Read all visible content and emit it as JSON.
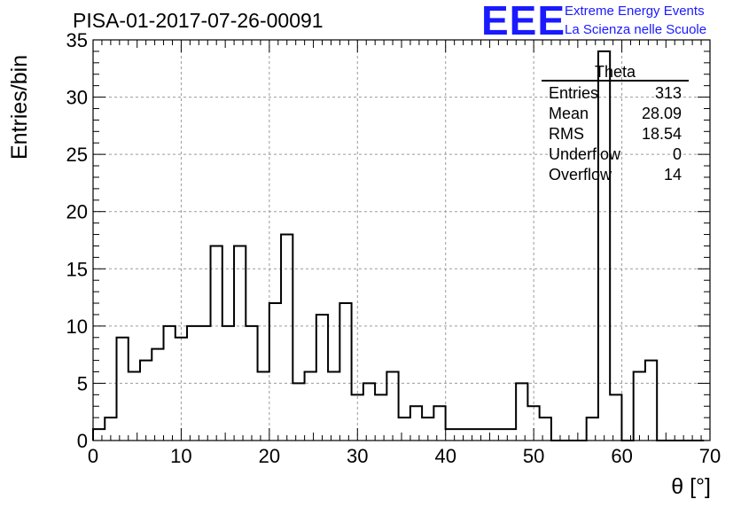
{
  "header": {
    "title": "PISA-01-2017-07-26-00091",
    "logo_text": "EEE",
    "logo_line1": "Extreme Energy Events",
    "logo_line2": "La Scienza nelle Scuole"
  },
  "stats": {
    "title": "Theta",
    "rows": [
      {
        "label": "Entries",
        "value": "313"
      },
      {
        "label": "Mean",
        "value": "28.09"
      },
      {
        "label": "RMS",
        "value": "18.54"
      },
      {
        "label": "Underflow",
        "value": "0"
      },
      {
        "label": "Overflow",
        "value": "14"
      }
    ]
  },
  "colors": {
    "logo": "#1a1aff",
    "line": "#000000",
    "grid": "#9a9a9a"
  },
  "chart_data": {
    "type": "histogram",
    "xlabel": "θ [°]",
    "ylabel": "Entries/bin",
    "xlim": [
      0,
      70
    ],
    "ylim": [
      0,
      35
    ],
    "bin_width": 1.333,
    "x_ticks": [
      "0",
      "10",
      "20",
      "30",
      "40",
      "50",
      "60",
      "70"
    ],
    "y_ticks": [
      "0",
      "5",
      "10",
      "15",
      "20",
      "25",
      "30",
      "35"
    ],
    "grid": true,
    "values": [
      1,
      2,
      9,
      6,
      7,
      8,
      10,
      9,
      10,
      10,
      17,
      10,
      17,
      10,
      6,
      12,
      18,
      5,
      6,
      11,
      6,
      12,
      4,
      5,
      4,
      6,
      2,
      3,
      2,
      3,
      1,
      1,
      1,
      1,
      1,
      1,
      5,
      3,
      2,
      0,
      0,
      0,
      2,
      34,
      4,
      0,
      6,
      7,
      0,
      0,
      0,
      0
    ]
  }
}
